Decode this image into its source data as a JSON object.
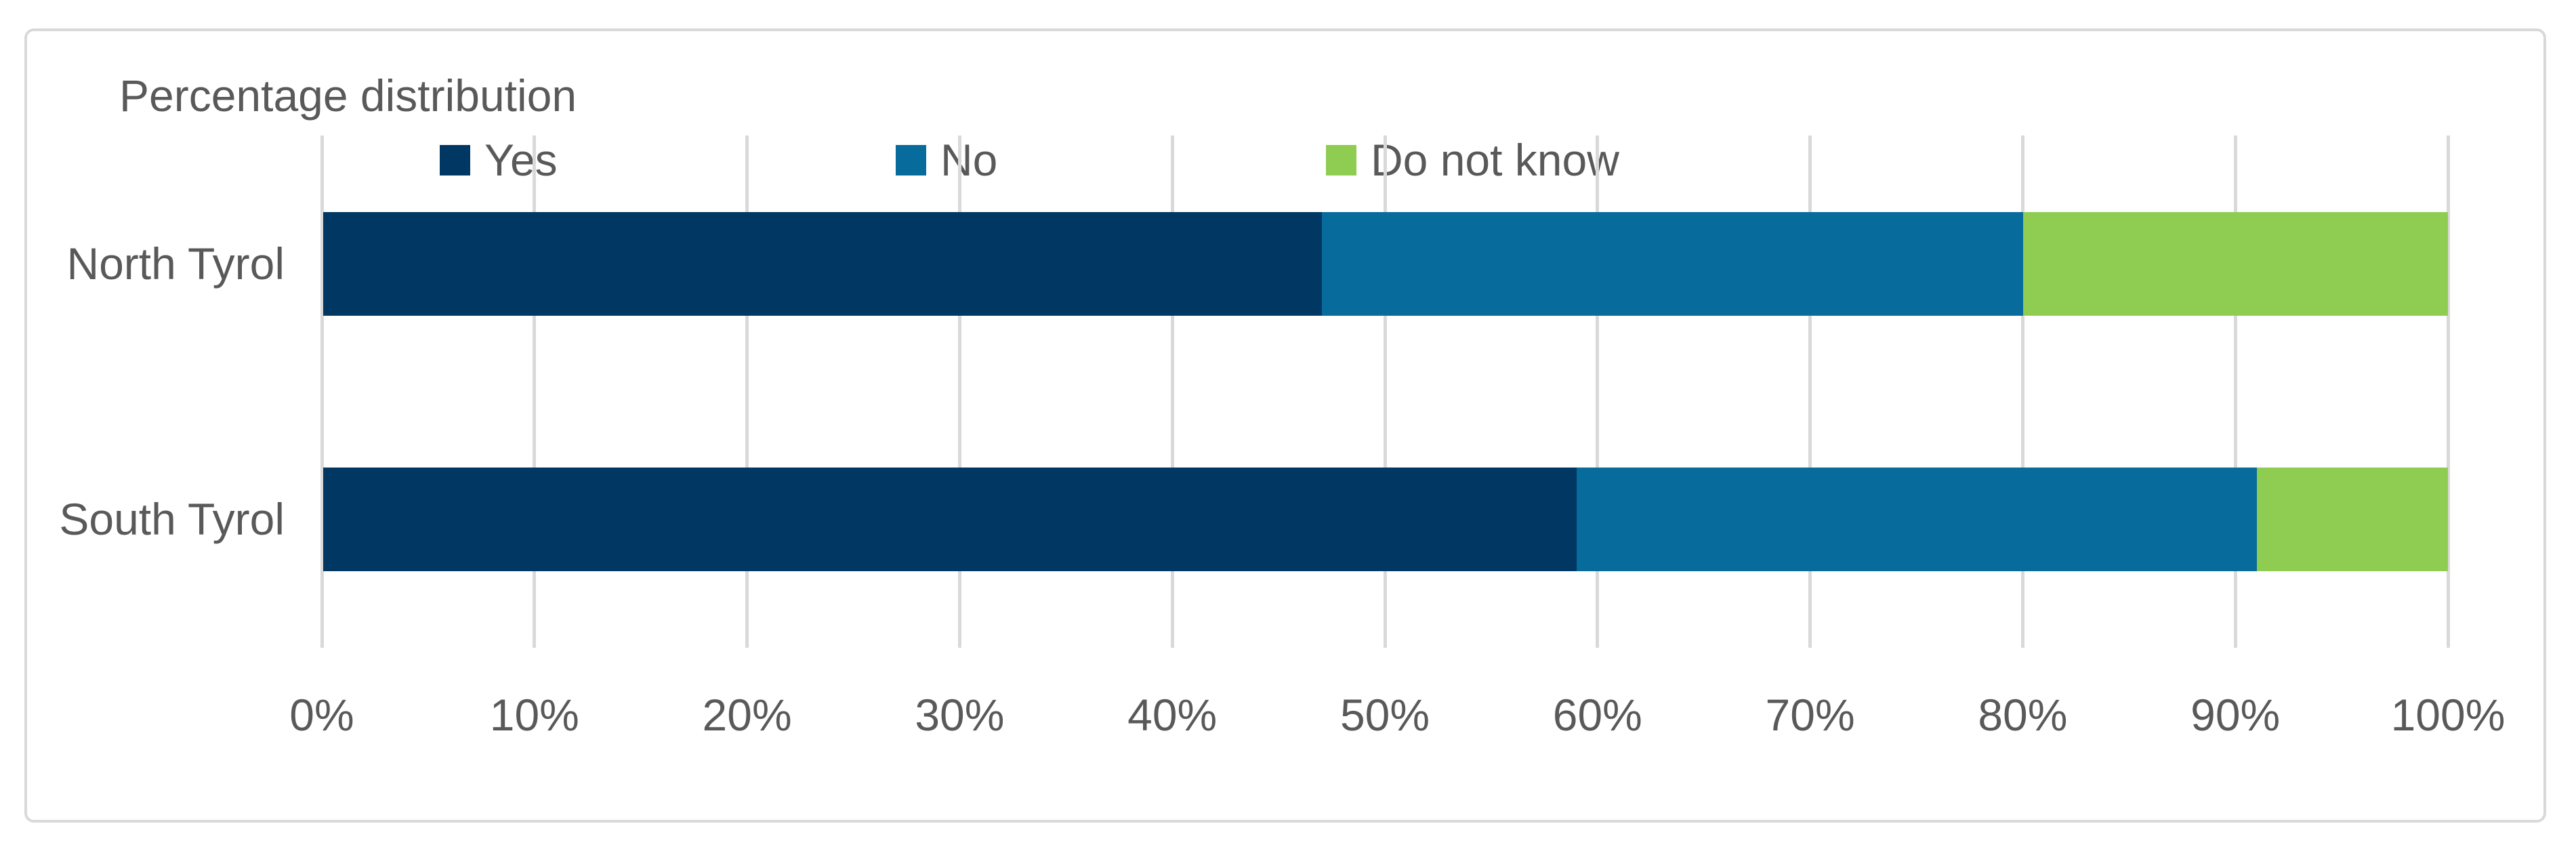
{
  "chart_data": {
    "type": "bar",
    "orientation": "horizontal",
    "stacked": true,
    "title": "Percentage distribution",
    "categories": [
      "North Tyrol",
      "South Tyrol"
    ],
    "series": [
      {
        "name": "Yes",
        "color": "#003763",
        "values": [
          47,
          59
        ]
      },
      {
        "name": "No",
        "color": "#076B9C",
        "values": [
          33,
          32
        ]
      },
      {
        "name": "Do not know",
        "color": "#8FCD52",
        "values": [
          20,
          9
        ]
      }
    ],
    "x_ticks": [
      "0%",
      "10%",
      "20%",
      "30%",
      "40%",
      "50%",
      "60%",
      "70%",
      "80%",
      "90%",
      "100%"
    ],
    "xlim": [
      0,
      100
    ],
    "legend_position": "top",
    "grid": "vertical-only",
    "gridline_color": "#D9D9D9",
    "text_color": "#595959",
    "frame_color": "#D9D9D9",
    "background_color": "#FFFFFF"
  }
}
